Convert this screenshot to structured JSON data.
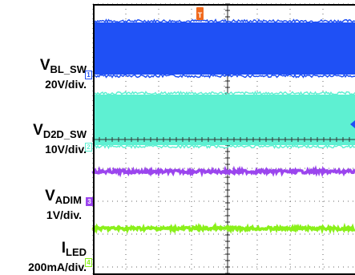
{
  "chart_data": {
    "type": "oscilloscope",
    "grid": "on",
    "trigger_marker": "T",
    "channels": [
      {
        "id": "1",
        "signal": "V",
        "subscript": "BL_SW",
        "scale": "20V/div.",
        "color": "#1f50f5",
        "trace": "switching band"
      },
      {
        "id": "2",
        "signal": "V",
        "subscript": "D2D_SW",
        "scale": "10V/div.",
        "color": "#5ef0d2",
        "trace": "switching band"
      },
      {
        "id": "3",
        "signal": "V",
        "subscript": "ADIM",
        "scale": "1V/div.",
        "color": "#9b45ee",
        "trace": "dc level"
      },
      {
        "id": "4",
        "signal": "I",
        "subscript": "LED",
        "scale": "200mA/div.",
        "color": "#8af01a",
        "trace": "dc level"
      }
    ]
  }
}
